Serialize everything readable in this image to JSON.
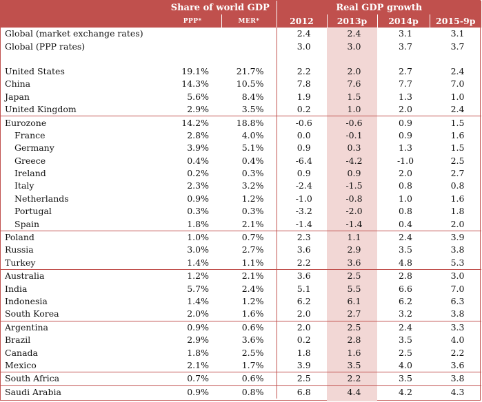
{
  "header": {
    "share_title": "Share of world GDP",
    "growth_title": "Real GDP growth",
    "ppp_label": "PPP*",
    "mer_label": "MER*",
    "years": [
      "2012",
      "2013p",
      "2014p",
      "2015-9p"
    ]
  },
  "rows": [
    {
      "name": "Global (market exchange rates)",
      "ppp": "",
      "mer": "",
      "y2012": "2.4",
      "y2013": "2.4",
      "y2014": "3.1",
      "y2015": "3.1"
    },
    {
      "name": "Global (PPP rates)",
      "ppp": "",
      "mer": "",
      "y2012": "3.0",
      "y2013": "3.0",
      "y2014": "3.7",
      "y2015": "3.7"
    },
    {
      "name": "United States",
      "ppp": "19.1%",
      "mer": "21.7%",
      "y2012": "2.2",
      "y2013": "2.0",
      "y2014": "2.7",
      "y2015": "2.4"
    },
    {
      "name": "China",
      "ppp": "14.3%",
      "mer": "10.5%",
      "y2012": "7.8",
      "y2013": "7.6",
      "y2014": "7.7",
      "y2015": "7.0"
    },
    {
      "name": "Japan",
      "ppp": "5.6%",
      "mer": "8.4%",
      "y2012": "1.9",
      "y2013": "1.5",
      "y2014": "1.3",
      "y2015": "1.0"
    },
    {
      "name": "United Kingdom",
      "ppp": "2.9%",
      "mer": "3.5%",
      "y2012": "0.2",
      "y2013": "1.0",
      "y2014": "2.0",
      "y2015": "2.4"
    },
    {
      "name": "Eurozone",
      "ppp": "14.2%",
      "mer": "18.8%",
      "y2012": "-0.6",
      "y2013": "-0.6",
      "y2014": "0.9",
      "y2015": "1.5"
    },
    {
      "name": "France",
      "ppp": "2.8%",
      "mer": "4.0%",
      "y2012": "0.0",
      "y2013": "-0.1",
      "y2014": "0.9",
      "y2015": "1.6"
    },
    {
      "name": "Germany",
      "ppp": "3.9%",
      "mer": "5.1%",
      "y2012": "0.9",
      "y2013": "0.3",
      "y2014": "1.3",
      "y2015": "1.5"
    },
    {
      "name": "Greece",
      "ppp": "0.4%",
      "mer": "0.4%",
      "y2012": "-6.4",
      "y2013": "-4.2",
      "y2014": "-1.0",
      "y2015": "2.5"
    },
    {
      "name": "Ireland",
      "ppp": "0.2%",
      "mer": "0.3%",
      "y2012": "0.9",
      "y2013": "0.9",
      "y2014": "2.0",
      "y2015": "2.7"
    },
    {
      "name": "Italy",
      "ppp": "2.3%",
      "mer": "3.2%",
      "y2012": "-2.4",
      "y2013": "-1.5",
      "y2014": "0.8",
      "y2015": "0.8"
    },
    {
      "name": "Netherlands",
      "ppp": "0.9%",
      "mer": "1.2%",
      "y2012": "-1.0",
      "y2013": "-0.8",
      "y2014": "1.0",
      "y2015": "1.6"
    },
    {
      "name": "Portugal",
      "ppp": "0.3%",
      "mer": "0.3%",
      "y2012": "-3.2",
      "y2013": "-2.0",
      "y2014": "0.8",
      "y2015": "1.8"
    },
    {
      "name": "Spain",
      "ppp": "1.8%",
      "mer": "2.1%",
      "y2012": "-1.4",
      "y2013": "-1.4",
      "y2014": "0.4",
      "y2015": "2.0"
    },
    {
      "name": "Poland",
      "ppp": "1.0%",
      "mer": "0.7%",
      "y2012": "2.3",
      "y2013": "1.1",
      "y2014": "2.4",
      "y2015": "3.9"
    },
    {
      "name": "Russia",
      "ppp": "3.0%",
      "mer": "2.7%",
      "y2012": "3.6",
      "y2013": "2.9",
      "y2014": "3.5",
      "y2015": "3.8"
    },
    {
      "name": "Turkey",
      "ppp": "1.4%",
      "mer": "1.1%",
      "y2012": "2.2",
      "y2013": "3.6",
      "y2014": "4.8",
      "y2015": "5.3"
    },
    {
      "name": "Australia",
      "ppp": "1.2%",
      "mer": "2.1%",
      "y2012": "3.6",
      "y2013": "2.5",
      "y2014": "2.8",
      "y2015": "3.0"
    },
    {
      "name": "India",
      "ppp": "5.7%",
      "mer": "2.4%",
      "y2012": "5.1",
      "y2013": "5.5",
      "y2014": "6.6",
      "y2015": "7.0"
    },
    {
      "name": "Indonesia",
      "ppp": "1.4%",
      "mer": "1.2%",
      "y2012": "6.2",
      "y2013": "6.1",
      "y2014": "6.2",
      "y2015": "6.3"
    },
    {
      "name": "South Korea",
      "ppp": "2.0%",
      "mer": "1.6%",
      "y2012": "2.0",
      "y2013": "2.7",
      "y2014": "3.2",
      "y2015": "3.8"
    },
    {
      "name": "Argentina",
      "ppp": "0.9%",
      "mer": "0.6%",
      "y2012": "2.0",
      "y2013": "2.5",
      "y2014": "2.4",
      "y2015": "3.3"
    },
    {
      "name": "Brazil",
      "ppp": "2.9%",
      "mer": "3.6%",
      "y2012": "0.2",
      "y2013": "2.8",
      "y2014": "3.5",
      "y2015": "4.0"
    },
    {
      "name": "Canada",
      "ppp": "1.8%",
      "mer": "2.5%",
      "y2012": "1.8",
      "y2013": "1.6",
      "y2014": "2.5",
      "y2015": "2.2"
    },
    {
      "name": "Mexico",
      "ppp": "2.1%",
      "mer": "1.7%",
      "y2012": "3.9",
      "y2013": "3.5",
      "y2014": "4.0",
      "y2015": "3.6"
    },
    {
      "name": "South Africa",
      "ppp": "0.7%",
      "mer": "0.6%",
      "y2012": "2.5",
      "y2013": "2.2",
      "y2014": "3.5",
      "y2015": "3.8"
    },
    {
      "name": "Saudi Arabia",
      "ppp": "0.9%",
      "mer": "0.8%",
      "y2012": "6.8",
      "y2013": "4.4",
      "y2014": "4.2",
      "y2015": "4.3"
    }
  ],
  "colors": {
    "accent": "#c0504d",
    "highlight": "#f2d7d5"
  }
}
